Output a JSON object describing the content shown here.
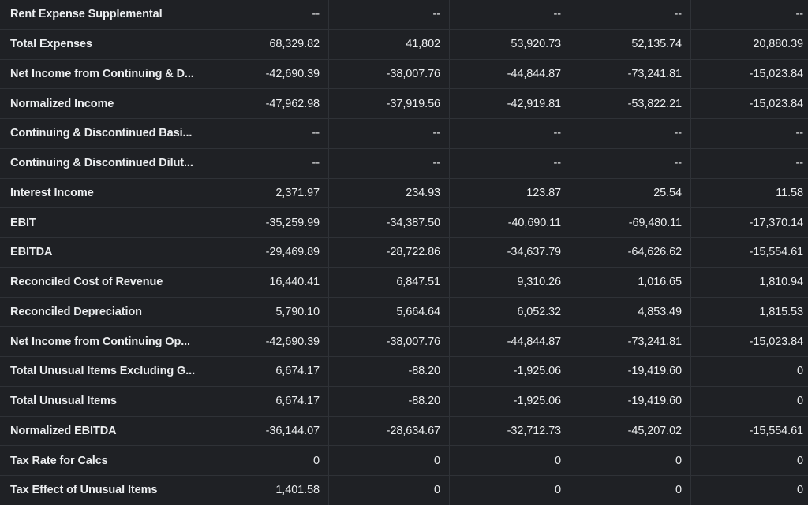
{
  "table": {
    "rows": [
      {
        "label": "Rent Expense Supplemental",
        "values": [
          "--",
          "--",
          "--",
          "--",
          "--"
        ]
      },
      {
        "label": "Total Expenses",
        "values": [
          "68,329.82",
          "41,802",
          "53,920.73",
          "52,135.74",
          "20,880.39"
        ]
      },
      {
        "label": "Net Income from Continuing & D...",
        "values": [
          "-42,690.39",
          "-38,007.76",
          "-44,844.87",
          "-73,241.81",
          "-15,023.84"
        ]
      },
      {
        "label": "Normalized Income",
        "values": [
          "-47,962.98",
          "-37,919.56",
          "-42,919.81",
          "-53,822.21",
          "-15,023.84"
        ]
      },
      {
        "label": "Continuing & Discontinued Basi...",
        "values": [
          "--",
          "--",
          "--",
          "--",
          "--"
        ]
      },
      {
        "label": "Continuing & Discontinued Dilut...",
        "values": [
          "--",
          "--",
          "--",
          "--",
          "--"
        ]
      },
      {
        "label": "Interest Income",
        "values": [
          "2,371.97",
          "234.93",
          "123.87",
          "25.54",
          "11.58"
        ]
      },
      {
        "label": "EBIT",
        "values": [
          "-35,259.99",
          "-34,387.50",
          "-40,690.11",
          "-69,480.11",
          "-17,370.14"
        ]
      },
      {
        "label": "EBITDA",
        "values": [
          "-29,469.89",
          "-28,722.86",
          "-34,637.79",
          "-64,626.62",
          "-15,554.61"
        ]
      },
      {
        "label": "Reconciled Cost of Revenue",
        "values": [
          "16,440.41",
          "6,847.51",
          "9,310.26",
          "1,016.65",
          "1,810.94"
        ]
      },
      {
        "label": "Reconciled Depreciation",
        "values": [
          "5,790.10",
          "5,664.64",
          "6,052.32",
          "4,853.49",
          "1,815.53"
        ]
      },
      {
        "label": "Net Income from Continuing Op...",
        "values": [
          "-42,690.39",
          "-38,007.76",
          "-44,844.87",
          "-73,241.81",
          "-15,023.84"
        ]
      },
      {
        "label": "Total Unusual Items Excluding G...",
        "values": [
          "6,674.17",
          "-88.20",
          "-1,925.06",
          "-19,419.60",
          "0"
        ]
      },
      {
        "label": "Total Unusual Items",
        "values": [
          "6,674.17",
          "-88.20",
          "-1,925.06",
          "-19,419.60",
          "0"
        ]
      },
      {
        "label": "Normalized EBITDA",
        "values": [
          "-36,144.07",
          "-28,634.67",
          "-32,712.73",
          "-45,207.02",
          "-15,554.61"
        ]
      },
      {
        "label": "Tax Rate for Calcs",
        "values": [
          "0",
          "0",
          "0",
          "0",
          "0"
        ]
      },
      {
        "label": "Tax Effect of Unusual Items",
        "values": [
          "1,401.58",
          "0",
          "0",
          "0",
          "0"
        ]
      }
    ]
  }
}
